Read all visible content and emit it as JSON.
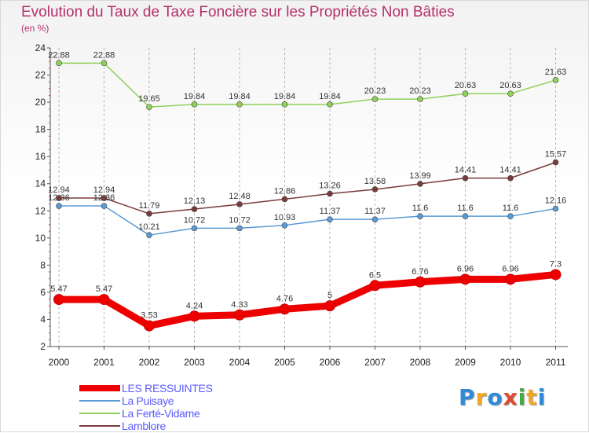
{
  "header": {
    "title": "Evolution du Taux de Taxe Foncière sur les Propriétés Non Bâties",
    "subtitle": "(en %)"
  },
  "logo": {
    "text": "Proxiti",
    "letters": [
      "P",
      "r",
      "o",
      "x",
      "i",
      "t",
      "i"
    ],
    "letter_colors": [
      "#2f8bd8",
      "#f5a623",
      "#2f8bd8",
      "#e04a2f",
      "#49a942",
      "#f5a623",
      "#2f8bd8"
    ]
  },
  "chart_data": {
    "type": "line",
    "title": "Evolution du Taux de Taxe Foncière sur les Propriétés Non Bâties",
    "ylabel": "(en %)",
    "xlabel": "",
    "ylim": [
      2,
      24
    ],
    "y_ticks": [
      "2",
      "4",
      "6",
      "8",
      "10",
      "12",
      "14",
      "16",
      "18",
      "20",
      "22",
      "24"
    ],
    "categories": [
      "2000",
      "2001",
      "2002",
      "2003",
      "2004",
      "2005",
      "2006",
      "2007",
      "2008",
      "2009",
      "2010",
      "2011"
    ],
    "grid": "vertical dashed",
    "series": [
      {
        "name": "LES RESSUINTES",
        "color": "#ee0000",
        "values": [
          5.47,
          5.47,
          3.53,
          4.24,
          4.33,
          4.76,
          5,
          6.5,
          6.76,
          6.96,
          6.96,
          7.3
        ],
        "labels": [
          "5.47",
          "5.47",
          "3.53",
          "4.24",
          "4.33",
          "4.76",
          "5",
          "6.5",
          "6.76",
          "6.96",
          "6.96",
          "7.3"
        ]
      },
      {
        "name": "La Puisaye",
        "color": "#5b9bd5",
        "values": [
          12.36,
          12.36,
          10.21,
          10.72,
          10.72,
          10.93,
          11.37,
          11.37,
          11.6,
          11.6,
          11.6,
          12.16
        ],
        "labels": [
          "12.36",
          "12.36",
          "10.21",
          "10.72",
          "10.72",
          "10.93",
          "11.37",
          "11.37",
          "11.6",
          "11.6",
          "11.6",
          "12.16"
        ]
      },
      {
        "name": "La Ferté-Vidame",
        "color": "#8fd15a",
        "values": [
          22.88,
          22.88,
          19.65,
          19.84,
          19.84,
          19.84,
          19.84,
          20.23,
          20.23,
          20.63,
          20.63,
          21.63
        ],
        "labels": [
          "22.88",
          "22.88",
          "19.65",
          "19.84",
          "19.84",
          "19.84",
          "19.84",
          "20.23",
          "20.23",
          "20.63",
          "20.63",
          "21.63"
        ]
      },
      {
        "name": "Lamblore",
        "color": "#7a3b3b",
        "values": [
          12.94,
          12.94,
          11.79,
          12.13,
          12.48,
          12.86,
          13.26,
          13.58,
          13.99,
          14.41,
          14.41,
          15.57
        ],
        "labels": [
          "12.94",
          "12.94",
          "11.79",
          "12.13",
          "12.48",
          "12.86",
          "13.26",
          "13.58",
          "13.99",
          "14.41",
          "14.41",
          "15.57"
        ]
      }
    ]
  }
}
